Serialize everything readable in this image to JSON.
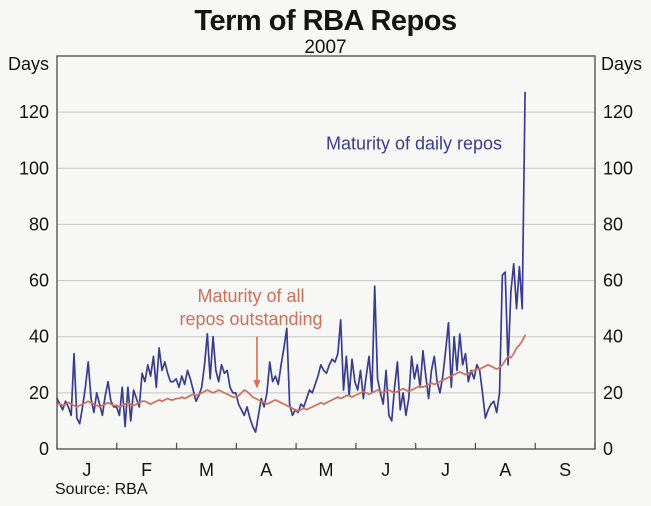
{
  "title": "Term of RBA Repos",
  "subtitle": "2007",
  "source": "Source: RBA",
  "axis": {
    "left_unit": "Days",
    "right_unit": "Days"
  },
  "annotations": {
    "daily": "Maturity of daily repos",
    "outstanding_line1": "Maturity of all",
    "outstanding_line2": "repos outstanding"
  },
  "colors": {
    "daily_line": "#3a3d8f",
    "outstanding_line": "#d26f58",
    "grid": "#c6c6c6",
    "frame": "#4a4a4a",
    "background": "#f7f7f6",
    "text": "#141414"
  },
  "chart_data": {
    "type": "line",
    "title": "Term of RBA Repos",
    "subtitle": "2007",
    "ylabel": "Days",
    "ylabel_right": "Days",
    "ylim": [
      0,
      140
    ],
    "yticks": [
      0,
      20,
      40,
      60,
      80,
      100,
      120
    ],
    "grid": true,
    "x_months": [
      "J",
      "F",
      "M",
      "A",
      "M",
      "J",
      "J",
      "A",
      "S"
    ],
    "x_axis_span_months": 9,
    "data_end_month": 7.83,
    "frequency": "daily",
    "annotation_arrow": {
      "month_x": 3.345,
      "from_days": 40,
      "to_days": 21.5
    },
    "series": [
      {
        "name": "Maturity of daily repos",
        "color": "#3a3d8f",
        "values": [
          18,
          16,
          14,
          17,
          15,
          12,
          34,
          11,
          9,
          15,
          22,
          31,
          18,
          13,
          20,
          16,
          12,
          19,
          24,
          17,
          15,
          15,
          12,
          22,
          8,
          22,
          10,
          21,
          18,
          15,
          27,
          24,
          30,
          26,
          33,
          22,
          36,
          28,
          31,
          27,
          24,
          24,
          25,
          22,
          26,
          23,
          28,
          25,
          21,
          17,
          19,
          22,
          30,
          41,
          25,
          40,
          28,
          24,
          30,
          27,
          28,
          22,
          20,
          20,
          16,
          14,
          12,
          15,
          11,
          8,
          6,
          12,
          18,
          15,
          20,
          31,
          24,
          26,
          23,
          30,
          36,
          43,
          16,
          12,
          14,
          13,
          16,
          15,
          18,
          21,
          20,
          23,
          26,
          30,
          28,
          27,
          30,
          32,
          31,
          34,
          46,
          21,
          33,
          19,
          32,
          24,
          21,
          28,
          18,
          26,
          33,
          20,
          58,
          25,
          20,
          16,
          28,
          12,
          10,
          22,
          31,
          14,
          20,
          12,
          18,
          33,
          25,
          30,
          22,
          35,
          26,
          18,
          28,
          33,
          24,
          20,
          26,
          35,
          45,
          22,
          40,
          28,
          41,
          30,
          34,
          24,
          28,
          25,
          30,
          28,
          20,
          11,
          14,
          16,
          17,
          13,
          20,
          62,
          63,
          30,
          56,
          66,
          50,
          65,
          50,
          127
        ]
      },
      {
        "name": "Maturity of all repos outstanding",
        "color": "#d26f58",
        "values": [
          16.5,
          16,
          15.5,
          16,
          16.5,
          16,
          15.5,
          15,
          15.5,
          16,
          16.5,
          17,
          16.5,
          16,
          15.5,
          15,
          15.5,
          16,
          16.5,
          16,
          15.5,
          15.5,
          15,
          15.5,
          16,
          16.5,
          16,
          15.5,
          16,
          16.5,
          17,
          17,
          16.5,
          16,
          16.5,
          17,
          17.5,
          17,
          17.5,
          18,
          17.5,
          17.5,
          18,
          18,
          18.5,
          18,
          18.5,
          19,
          19.5,
          19,
          19.5,
          20,
          20.5,
          21,
          20.5,
          20,
          20.5,
          21,
          20.5,
          20,
          19.5,
          19,
          18.5,
          18.5,
          19,
          20,
          21,
          20.5,
          19.5,
          18.5,
          18,
          17.5,
          17,
          16.5,
          16,
          16.5,
          17,
          17.5,
          17,
          16.5,
          16,
          15.5,
          15,
          14.5,
          14,
          13.5,
          14,
          14.5,
          14,
          14.5,
          15,
          15.5,
          16,
          16.5,
          16,
          16.5,
          17,
          17.5,
          18,
          18.5,
          18,
          18.5,
          19,
          19,
          18.5,
          19,
          19.5,
          20,
          20.5,
          20,
          19.5,
          20,
          20.5,
          21,
          20.5,
          20,
          20.5,
          21,
          20.5,
          20,
          20.5,
          21,
          21.5,
          21,
          20.5,
          21,
          21.5,
          22,
          22.5,
          22,
          22.5,
          23,
          23.5,
          23,
          23.5,
          24,
          24.5,
          25,
          25.5,
          26,
          26.5,
          27,
          27.5,
          27,
          26.5,
          27,
          27.5,
          28,
          28.5,
          28.5,
          29,
          29.5,
          30,
          29.5,
          29,
          28.5,
          29,
          30,
          31.5,
          33,
          32.5,
          34,
          36,
          37,
          38.5,
          40.5
        ]
      }
    ]
  }
}
